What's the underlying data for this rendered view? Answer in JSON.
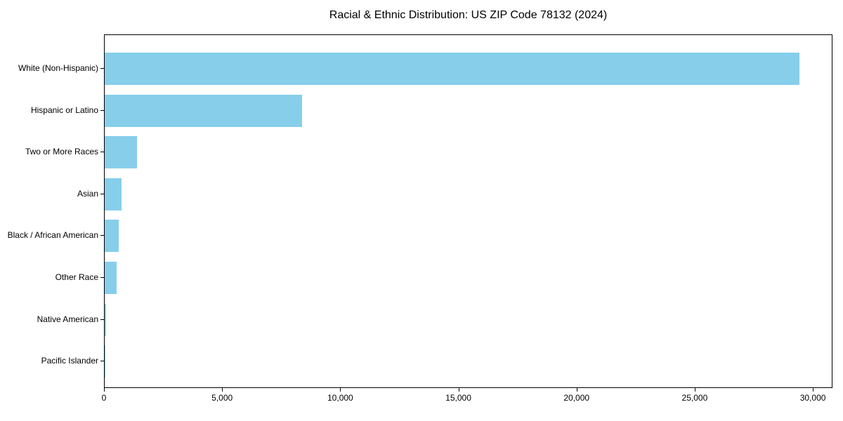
{
  "chart_data": {
    "type": "bar",
    "orientation": "horizontal",
    "title": "Racial & Ethnic Distribution: US ZIP Code 78132 (2024)",
    "categories": [
      "White (Non-Hispanic)",
      "Hispanic or Latino",
      "Two or More Races",
      "Asian",
      "Black / African American",
      "Other Race",
      "Native American",
      "Pacific Islander"
    ],
    "values": [
      29400,
      8350,
      1370,
      700,
      590,
      520,
      50,
      15
    ],
    "xlabel": "",
    "ylabel": "",
    "xlim": [
      0,
      30830
    ],
    "xticks": [
      0,
      5000,
      10000,
      15000,
      20000,
      25000,
      30000
    ],
    "bar_color": "#87CEEB",
    "axis_color": "#000000",
    "grid": false,
    "legend": null
  }
}
